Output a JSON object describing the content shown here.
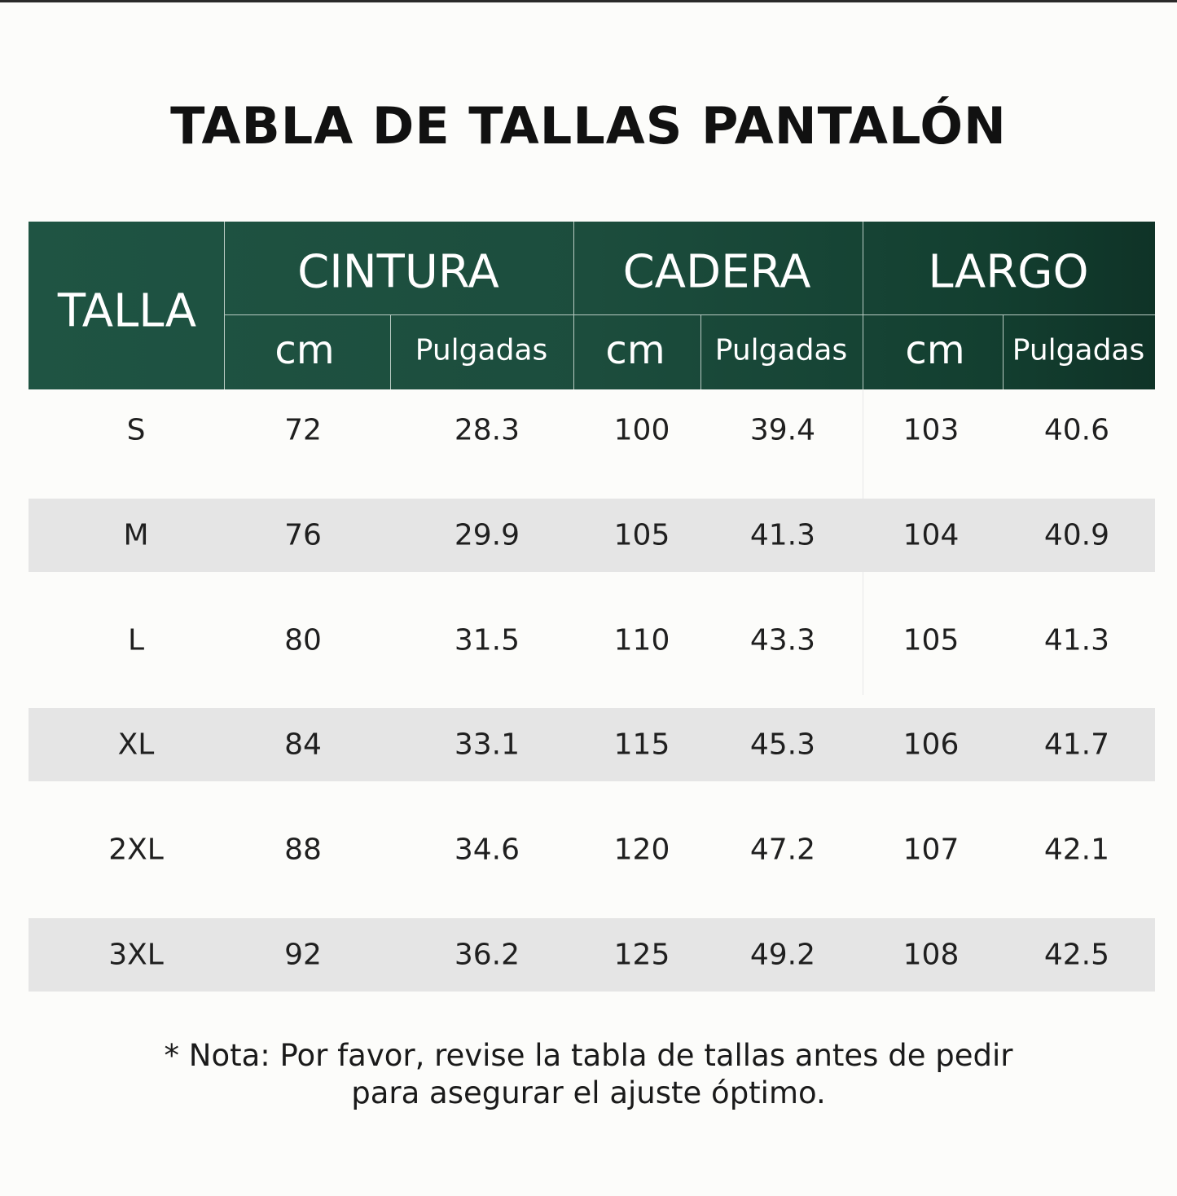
{
  "title": "TABLA DE TALLAS PANTALÓN",
  "colors": {
    "header_green": "#1c4d3d",
    "stripe_gray": "#e5e5e5",
    "header_text": "#ffffff"
  },
  "table": {
    "size_header": "TALLA",
    "groups": [
      "CINTURA",
      "CADERA",
      "LARGO"
    ],
    "units": [
      "cm",
      "Pulgadas",
      "cm",
      "Pulgadas",
      "cm",
      "Pulgadas"
    ],
    "rows": [
      [
        "S",
        "72",
        "28.3",
        "100",
        "39.4",
        "103",
        "40.6"
      ],
      [
        "M",
        "76",
        "29.9",
        "105",
        "41.3",
        "104",
        "40.9"
      ],
      [
        "L",
        "80",
        "31.5",
        "110",
        "43.3",
        "105",
        "41.3"
      ],
      [
        "XL",
        "84",
        "33.1",
        "115",
        "45.3",
        "106",
        "41.7"
      ],
      [
        "2XL",
        "88",
        "34.6",
        "120",
        "47.2",
        "107",
        "42.1"
      ],
      [
        "3XL",
        "92",
        "36.2",
        "125",
        "49.2",
        "108",
        "42.5"
      ]
    ]
  },
  "note": {
    "line1": "* Nota: Por favor, revise la tabla de tallas antes de pedir",
    "line2": "para asegurar el ajuste óptimo."
  }
}
